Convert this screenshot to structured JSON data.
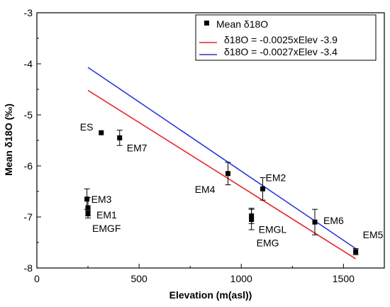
{
  "chart_data": {
    "type": "scatter",
    "xlabel": "Elevation (m(asl))",
    "ylabel": "Mean δ18O (‰)",
    "xlim": [
      0,
      1700
    ],
    "ylim": [
      -8,
      -3
    ],
    "x_ticks": [
      0,
      500,
      1000,
      1500
    ],
    "y_ticks": [
      -8,
      -7,
      -6,
      -5,
      -4,
      -3
    ],
    "x_tick_labels": [
      "0",
      "500",
      "1000",
      "1500"
    ],
    "y_tick_labels": [
      "-8",
      "-7",
      "-6",
      "-5",
      "-4",
      "-3"
    ],
    "grid": false,
    "legend_placement": "top-right",
    "series": [
      {
        "name": "Mean δ18O",
        "marker": "square",
        "color": "#000000",
        "points": [
          {
            "label": "ES",
            "x": 315,
            "y": -5.35,
            "err": 0
          },
          {
            "label": "EM7",
            "x": 405,
            "y": -5.45,
            "err": 0.15
          },
          {
            "label": "EM3",
            "x": 245,
            "y": -6.65,
            "err": 0.2
          },
          {
            "label": "EM1",
            "x": 250,
            "y": -6.82,
            "err": 0.2
          },
          {
            "label": "EMGF",
            "x": 250,
            "y": -6.93,
            "err": 0.05
          },
          {
            "label": "EM4",
            "x": 935,
            "y": -6.15,
            "err": 0.22
          },
          {
            "label": "EM2",
            "x": 1105,
            "y": -6.45,
            "err": 0.22
          },
          {
            "label": "EMGL",
            "x": 1050,
            "y": -6.98,
            "err": 0.15
          },
          {
            "label": "EMG",
            "x": 1050,
            "y": -7.05,
            "err": 0.2
          },
          {
            "label": "EM6",
            "x": 1360,
            "y": -7.1,
            "err": 0.25
          },
          {
            "label": "EM5",
            "x": 1560,
            "y": -7.68,
            "err": 0.06
          }
        ]
      }
    ],
    "lines": [
      {
        "name": "δ18O = -0.0025xElev -3.9",
        "color": "#e8262a",
        "x": [
          250,
          1560
        ],
        "y": [
          -4.52,
          -7.82
        ]
      },
      {
        "name": "δ18O = -0.0027xElev -3.4",
        "color": "#2a35e0",
        "x": [
          250,
          1560
        ],
        "y": [
          -4.07,
          -7.62
        ]
      }
    ]
  }
}
